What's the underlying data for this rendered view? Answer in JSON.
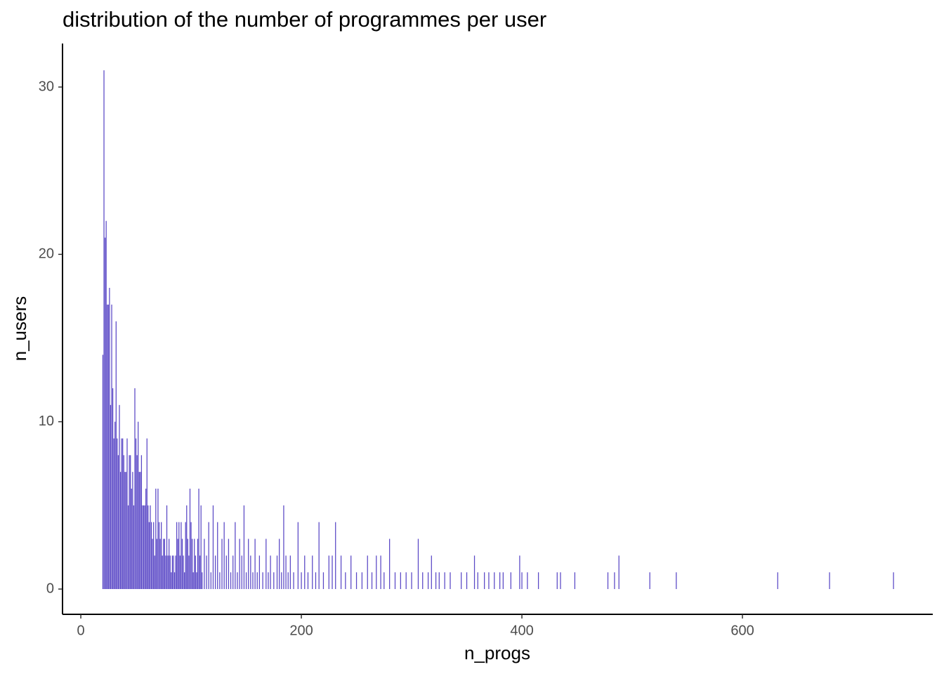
{
  "chart_data": {
    "type": "bar",
    "title": "distribution of the number of programmes per user",
    "x_label": "n_progs",
    "y_label": "n_users",
    "color": "#5a48c6",
    "grid": false,
    "xlim": [
      -16.6,
      772.6
    ],
    "ylim": [
      -1.51,
      32.6
    ],
    "xticks": [
      0,
      200,
      400,
      600
    ],
    "yticks": [
      0,
      10,
      20,
      30
    ],
    "x": [
      20,
      21,
      22,
      23,
      24,
      25,
      26,
      27,
      28,
      29,
      30,
      31,
      32,
      33,
      34,
      35,
      36,
      37,
      38,
      39,
      40,
      41,
      42,
      43,
      44,
      45,
      46,
      47,
      48,
      49,
      50,
      51,
      52,
      53,
      54,
      55,
      56,
      57,
      58,
      59,
      60,
      61,
      62,
      63,
      64,
      65,
      66,
      67,
      68,
      69,
      70,
      71,
      72,
      73,
      74,
      75,
      76,
      77,
      78,
      79,
      80,
      81,
      82,
      83,
      84,
      85,
      86,
      87,
      88,
      89,
      90,
      91,
      92,
      93,
      94,
      95,
      96,
      97,
      98,
      99,
      100,
      101,
      102,
      103,
      104,
      105,
      106,
      107,
      108,
      109,
      110,
      112,
      114,
      116,
      118,
      120,
      122,
      124,
      126,
      128,
      130,
      132,
      134,
      136,
      138,
      140,
      142,
      144,
      146,
      148,
      150,
      152,
      154,
      156,
      158,
      160,
      162,
      165,
      168,
      170,
      172,
      175,
      178,
      180,
      182,
      184,
      186,
      188,
      190,
      193,
      197,
      200,
      203,
      206,
      210,
      213,
      216,
      220,
      225,
      228,
      231,
      236,
      240,
      245,
      250,
      255,
      260,
      264,
      268,
      272,
      275,
      280,
      285,
      290,
      295,
      300,
      306,
      310,
      315,
      318,
      322,
      325,
      330,
      335,
      345,
      350,
      357,
      360,
      366,
      370,
      375,
      380,
      383,
      390,
      398,
      400,
      405,
      415,
      432,
      435,
      448,
      478,
      484,
      488,
      516,
      540,
      632,
      679,
      737
    ],
    "values": [
      14,
      31,
      21,
      22,
      17,
      17,
      18,
      11,
      17,
      12,
      9,
      10,
      16,
      9,
      8,
      11,
      7,
      9,
      9,
      8,
      7,
      7,
      9,
      5,
      8,
      8,
      6,
      7,
      5,
      12,
      9,
      8,
      10,
      7,
      7,
      8,
      5,
      5,
      5,
      6,
      9,
      5,
      4,
      5,
      4,
      3,
      4,
      2,
      6,
      3,
      6,
      4,
      3,
      4,
      2,
      3,
      3,
      2,
      5,
      2,
      3,
      2,
      1,
      2,
      2,
      1,
      2,
      4,
      3,
      4,
      2,
      4,
      3,
      2,
      1,
      4,
      5,
      3,
      2,
      6,
      4,
      3,
      1,
      3,
      2,
      1,
      3,
      6,
      2,
      5,
      1,
      3,
      2,
      4,
      1,
      5,
      2,
      4,
      1,
      3,
      4,
      2,
      3,
      1,
      2,
      4,
      1,
      3,
      2,
      5,
      1,
      3,
      2,
      1,
      3,
      1,
      2,
      1,
      3,
      1,
      2,
      1,
      2,
      3,
      1,
      5,
      2,
      1,
      2,
      1,
      4,
      1,
      2,
      1,
      2,
      1,
      4,
      1,
      2,
      2,
      4,
      2,
      1,
      2,
      1,
      1,
      2,
      1,
      2,
      2,
      1,
      3,
      1,
      1,
      1,
      1,
      3,
      1,
      1,
      2,
      1,
      1,
      1,
      1,
      1,
      1,
      2,
      1,
      1,
      1,
      1,
      1,
      1,
      1,
      2,
      1,
      1,
      1,
      1,
      1,
      1,
      1,
      1,
      2,
      1,
      1,
      1,
      1,
      1
    ]
  }
}
